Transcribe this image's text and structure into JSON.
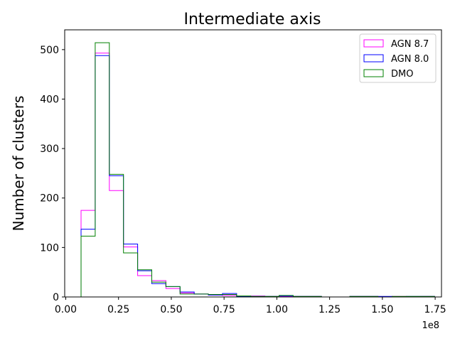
{
  "chart_data": {
    "type": "histogram",
    "title": "Intermediate axis",
    "xlabel": "",
    "ylabel": "Number of clusters",
    "x_offset_label": "1e8",
    "xlim": [
      -0.005,
      1.78
    ],
    "ylim": [
      0,
      540
    ],
    "x_ticks": [
      0.0,
      0.25,
      0.5,
      0.75,
      1.0,
      1.25,
      1.5,
      1.75
    ],
    "x_tick_labels": [
      "0.00",
      "0.25",
      "0.50",
      "0.75",
      "1.00",
      "1.25",
      "1.50",
      "1.75"
    ],
    "y_ticks": [
      0,
      100,
      200,
      300,
      400,
      500
    ],
    "y_tick_labels": [
      "0",
      "100",
      "200",
      "300",
      "400",
      "500"
    ],
    "bin_edges": [
      0.0725,
      0.1395,
      0.2065,
      0.2735,
      0.3405,
      0.4075,
      0.4745,
      0.5415,
      0.6085,
      0.6755,
      0.7425,
      0.8095,
      0.8765,
      0.9435,
      1.0105,
      1.0775,
      1.1445,
      1.2115,
      1.2785,
      1.3455,
      1.4125,
      1.4795,
      1.5465,
      1.6135,
      1.6805,
      1.7475
    ],
    "series": [
      {
        "name": "AGN 8.7",
        "color": "#ff00ff",
        "values": [
          175,
          493,
          215,
          101,
          43,
          33,
          17,
          8,
          6,
          4,
          3,
          1,
          2,
          1,
          1,
          1,
          1,
          0,
          0,
          1,
          1,
          0,
          1,
          0,
          1
        ]
      },
      {
        "name": "AGN 8.0",
        "color": "#0000ff",
        "values": [
          137,
          488,
          245,
          107,
          53,
          27,
          21,
          10,
          6,
          4,
          7,
          1,
          1,
          1,
          2,
          1,
          1,
          0,
          0,
          1,
          1,
          1,
          0,
          1,
          1
        ]
      },
      {
        "name": "DMO",
        "color": "#008000",
        "values": [
          123,
          514,
          248,
          89,
          55,
          30,
          21,
          6,
          6,
          5,
          5,
          2,
          1,
          1,
          3,
          1,
          1,
          0,
          0,
          1,
          1,
          0,
          1,
          1,
          1
        ]
      }
    ],
    "legend_position": "top-right",
    "grid": false
  }
}
